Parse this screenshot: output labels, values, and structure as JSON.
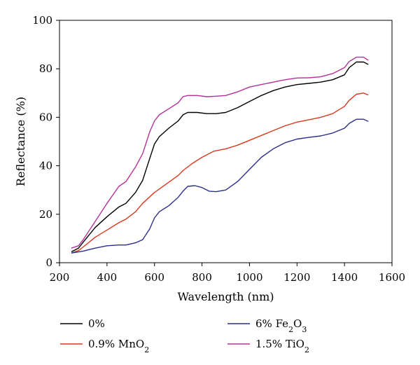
{
  "chart_data": {
    "type": "line",
    "xlabel": "Wavelength (nm)",
    "ylabel": "Reflectance (%)",
    "xlim": [
      200,
      1600
    ],
    "ylim": [
      0,
      100
    ],
    "xticks": [
      200,
      400,
      600,
      800,
      1000,
      1200,
      1400,
      1600
    ],
    "yticks": [
      0,
      20,
      40,
      60,
      80,
      100
    ],
    "grid": false,
    "legend_position": "below",
    "series": [
      {
        "name": "0%",
        "legend_parts": [
          {
            "t": "0%",
            "sub": false
          }
        ],
        "color": "#000000",
        "points": [
          [
            250,
            4.5
          ],
          [
            280,
            6
          ],
          [
            300,
            8.5
          ],
          [
            350,
            14.5
          ],
          [
            400,
            19
          ],
          [
            450,
            23
          ],
          [
            480,
            24.5
          ],
          [
            520,
            29
          ],
          [
            550,
            34
          ],
          [
            580,
            43
          ],
          [
            600,
            49
          ],
          [
            620,
            52
          ],
          [
            660,
            55.5
          ],
          [
            700,
            58.5
          ],
          [
            720,
            61
          ],
          [
            740,
            62
          ],
          [
            780,
            62
          ],
          [
            820,
            61.5
          ],
          [
            860,
            61.5
          ],
          [
            900,
            62
          ],
          [
            950,
            64
          ],
          [
            1000,
            66.5
          ],
          [
            1050,
            69
          ],
          [
            1100,
            71
          ],
          [
            1150,
            72.5
          ],
          [
            1200,
            73.5
          ],
          [
            1250,
            74
          ],
          [
            1300,
            74.5
          ],
          [
            1350,
            75.5
          ],
          [
            1400,
            77.5
          ],
          [
            1420,
            80.5
          ],
          [
            1450,
            82.8
          ],
          [
            1480,
            82.8
          ],
          [
            1500,
            81.8
          ]
        ]
      },
      {
        "name": "0.9% MnO2",
        "legend_parts": [
          {
            "t": "0.9% MnO",
            "sub": false
          },
          {
            "t": "2",
            "sub": true
          }
        ],
        "color": "#d83a1e",
        "points": [
          [
            250,
            4
          ],
          [
            280,
            5
          ],
          [
            300,
            6.5
          ],
          [
            350,
            10.5
          ],
          [
            400,
            13.5
          ],
          [
            450,
            16.5
          ],
          [
            480,
            18
          ],
          [
            520,
            21
          ],
          [
            550,
            24.5
          ],
          [
            600,
            29
          ],
          [
            650,
            32.5
          ],
          [
            700,
            36
          ],
          [
            720,
            38
          ],
          [
            760,
            41
          ],
          [
            800,
            43.5
          ],
          [
            830,
            45
          ],
          [
            850,
            46
          ],
          [
            900,
            47
          ],
          [
            950,
            48.5
          ],
          [
            1000,
            50.5
          ],
          [
            1050,
            52.5
          ],
          [
            1100,
            54.5
          ],
          [
            1150,
            56.5
          ],
          [
            1200,
            58
          ],
          [
            1250,
            59
          ],
          [
            1300,
            60
          ],
          [
            1350,
            61.5
          ],
          [
            1400,
            64.5
          ],
          [
            1420,
            67
          ],
          [
            1450,
            69.5
          ],
          [
            1480,
            70
          ],
          [
            1500,
            69.2
          ]
        ]
      },
      {
        "name": "6% Fe2O3",
        "legend_parts": [
          {
            "t": "6% Fe",
            "sub": false
          },
          {
            "t": "2",
            "sub": true
          },
          {
            "t": "O",
            "sub": false
          },
          {
            "t": "3",
            "sub": true
          }
        ],
        "color": "#2b2f8c",
        "points": [
          [
            250,
            4
          ],
          [
            300,
            4.8
          ],
          [
            350,
            6
          ],
          [
            400,
            7
          ],
          [
            450,
            7.3
          ],
          [
            480,
            7.3
          ],
          [
            520,
            8.2
          ],
          [
            550,
            9.5
          ],
          [
            580,
            14
          ],
          [
            600,
            18.5
          ],
          [
            620,
            21
          ],
          [
            660,
            23.5
          ],
          [
            700,
            27
          ],
          [
            720,
            29.5
          ],
          [
            740,
            31.5
          ],
          [
            770,
            31.8
          ],
          [
            800,
            31
          ],
          [
            830,
            29.5
          ],
          [
            860,
            29.3
          ],
          [
            900,
            30
          ],
          [
            950,
            33.5
          ],
          [
            1000,
            38.5
          ],
          [
            1050,
            43.5
          ],
          [
            1100,
            47
          ],
          [
            1150,
            49.5
          ],
          [
            1200,
            51
          ],
          [
            1250,
            51.7
          ],
          [
            1300,
            52.3
          ],
          [
            1350,
            53.5
          ],
          [
            1400,
            55.5
          ],
          [
            1420,
            57.5
          ],
          [
            1450,
            59.2
          ],
          [
            1480,
            59.2
          ],
          [
            1500,
            58.3
          ]
        ]
      },
      {
        "name": "1.5% TiO2",
        "legend_parts": [
          {
            "t": "1.5% TiO",
            "sub": false
          },
          {
            "t": "2",
            "sub": true
          }
        ],
        "color": "#b5309a",
        "points": [
          [
            250,
            6
          ],
          [
            280,
            7
          ],
          [
            300,
            9.5
          ],
          [
            350,
            17
          ],
          [
            400,
            24.5
          ],
          [
            450,
            31.5
          ],
          [
            480,
            33.5
          ],
          [
            520,
            39.5
          ],
          [
            550,
            45
          ],
          [
            580,
            54
          ],
          [
            600,
            58.5
          ],
          [
            620,
            61
          ],
          [
            660,
            63.5
          ],
          [
            700,
            66
          ],
          [
            720,
            68.5
          ],
          [
            740,
            69
          ],
          [
            780,
            69
          ],
          [
            820,
            68.5
          ],
          [
            860,
            68.7
          ],
          [
            900,
            69
          ],
          [
            950,
            70.5
          ],
          [
            1000,
            72.5
          ],
          [
            1050,
            73.5
          ],
          [
            1100,
            74.5
          ],
          [
            1150,
            75.5
          ],
          [
            1200,
            76.2
          ],
          [
            1250,
            76.3
          ],
          [
            1300,
            76.7
          ],
          [
            1350,
            78
          ],
          [
            1400,
            80.5
          ],
          [
            1420,
            83
          ],
          [
            1450,
            84.8
          ],
          [
            1480,
            84.8
          ],
          [
            1500,
            83.5
          ]
        ]
      }
    ]
  }
}
